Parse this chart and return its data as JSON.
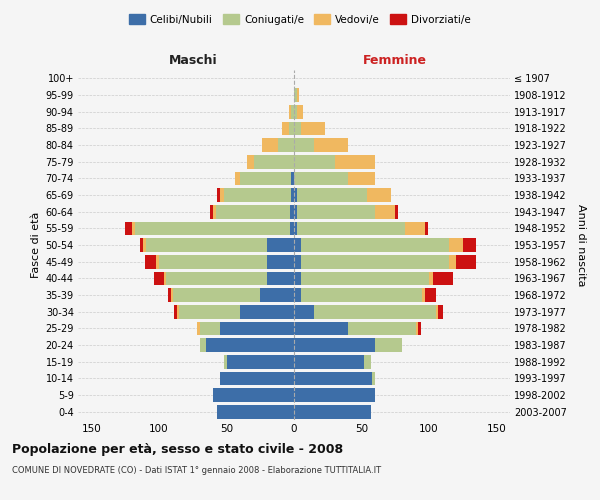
{
  "age_groups": [
    "0-4",
    "5-9",
    "10-14",
    "15-19",
    "20-24",
    "25-29",
    "30-34",
    "35-39",
    "40-44",
    "45-49",
    "50-54",
    "55-59",
    "60-64",
    "65-69",
    "70-74",
    "75-79",
    "80-84",
    "85-89",
    "90-94",
    "95-99",
    "100+"
  ],
  "birth_years": [
    "2003-2007",
    "1998-2002",
    "1993-1997",
    "1988-1992",
    "1983-1987",
    "1978-1982",
    "1973-1977",
    "1968-1972",
    "1963-1967",
    "1958-1962",
    "1953-1957",
    "1948-1952",
    "1943-1947",
    "1938-1942",
    "1933-1937",
    "1928-1932",
    "1923-1927",
    "1918-1922",
    "1913-1917",
    "1908-1912",
    "≤ 1907"
  ],
  "male": {
    "celibi": [
      57,
      60,
      55,
      50,
      65,
      55,
      40,
      25,
      20,
      20,
      20,
      3,
      3,
      2,
      2,
      0,
      0,
      0,
      0,
      0,
      0
    ],
    "coniugati": [
      0,
      0,
      0,
      2,
      5,
      15,
      45,
      65,
      75,
      80,
      90,
      115,
      55,
      50,
      38,
      30,
      12,
      4,
      2,
      0,
      0
    ],
    "vedovi": [
      0,
      0,
      0,
      0,
      0,
      2,
      2,
      1,
      1,
      2,
      2,
      2,
      2,
      3,
      4,
      5,
      12,
      5,
      2,
      0,
      0
    ],
    "divorziati": [
      0,
      0,
      0,
      0,
      0,
      0,
      2,
      2,
      8,
      8,
      2,
      5,
      2,
      2,
      0,
      0,
      0,
      0,
      0,
      0,
      0
    ]
  },
  "female": {
    "nubili": [
      57,
      60,
      58,
      52,
      60,
      40,
      15,
      5,
      5,
      5,
      5,
      2,
      2,
      2,
      0,
      0,
      0,
      0,
      0,
      0,
      0
    ],
    "coniugate": [
      0,
      0,
      2,
      5,
      20,
      50,
      90,
      90,
      95,
      110,
      110,
      80,
      58,
      52,
      40,
      30,
      15,
      5,
      2,
      2,
      0
    ],
    "vedove": [
      0,
      0,
      0,
      0,
      0,
      2,
      2,
      2,
      3,
      5,
      10,
      15,
      15,
      18,
      20,
      30,
      25,
      18,
      5,
      2,
      0
    ],
    "divorziate": [
      0,
      0,
      0,
      0,
      0,
      2,
      3,
      8,
      15,
      15,
      10,
      2,
      2,
      0,
      0,
      0,
      0,
      0,
      0,
      0,
      0
    ]
  },
  "colors": {
    "celibi": "#3d6ea8",
    "coniugati": "#b5c98e",
    "vedovi": "#f0b860",
    "divorziati": "#cc1111"
  },
  "title": "Popolazione per età, sesso e stato civile - 2008",
  "subtitle": "COMUNE DI NOVEDRATE (CO) - Dati ISTAT 1° gennaio 2008 - Elaborazione TUTTITALIA.IT",
  "xlabel_left": "Maschi",
  "xlabel_right": "Femmine",
  "ylabel": "Fasce di età",
  "ylabel_right": "Anni di nascita",
  "xlim": 160,
  "legend_labels": [
    "Celibi/Nubili",
    "Coniugati/e",
    "Vedovi/e",
    "Divorziati/e"
  ],
  "bg_color": "#f5f5f5",
  "grid_color": "#cccccc"
}
